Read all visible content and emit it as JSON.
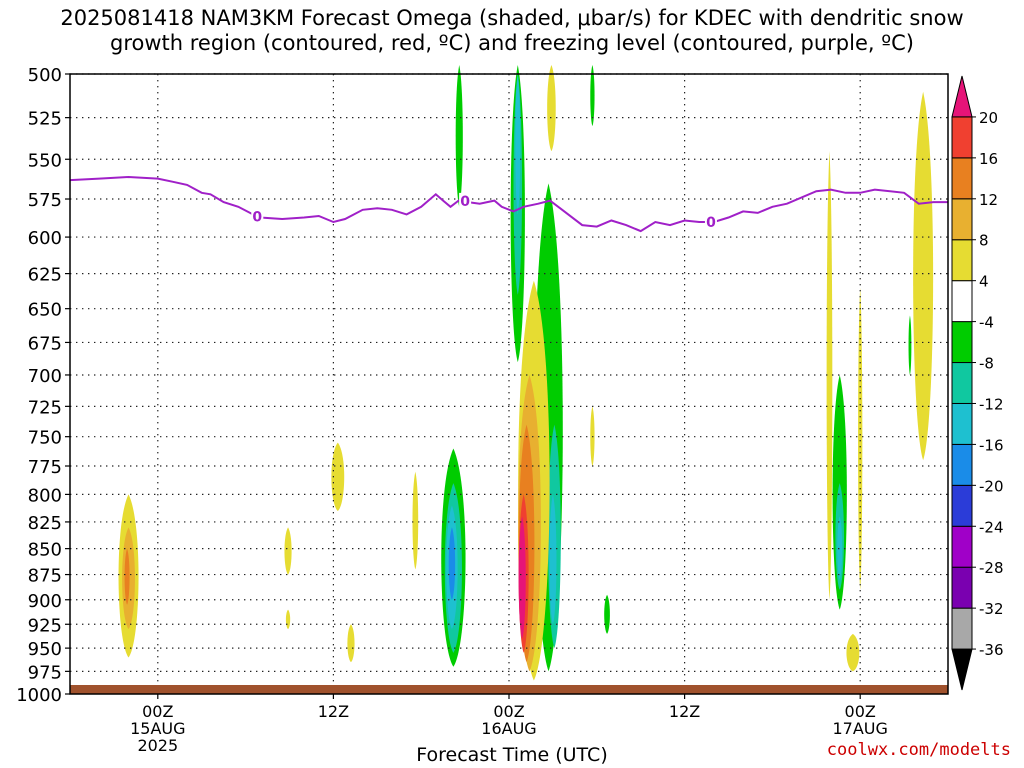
{
  "title": {
    "line1": "2025081418 NAM3KM Forecast Omega (shaded, μbar/s) for KDEC with dendritic snow",
    "line2": "growth region (contoured, red, ºC) and freezing level (contoured, purple, ºC)"
  },
  "watermark": "coolwx.com/modelts",
  "chart_data": {
    "type": "contour",
    "title": "2025081418 NAM3KM Forecast Omega (shaded, μbar/s) for KDEC with dendritic snow growth region (contoured, red, ºC) and freezing level (contoured, purple, ºC)",
    "xlabel": "Forecast Time (UTC)",
    "ylabel": "",
    "x_start_hour_utc": 18,
    "x_start_date": "14AUG2025",
    "x_range_hours": [
      0,
      59
    ],
    "y_levels_hpa": [
      500,
      525,
      550,
      575,
      600,
      625,
      650,
      675,
      700,
      725,
      750,
      775,
      800,
      825,
      850,
      875,
      900,
      925,
      950,
      975,
      1000
    ],
    "x_ticks": [
      {
        "hour": 6,
        "label": "00Z",
        "sub1": "15AUG",
        "sub2": "2025"
      },
      {
        "hour": 18,
        "label": "12Z",
        "sub1": "",
        "sub2": ""
      },
      {
        "hour": 30,
        "label": "00Z",
        "sub1": "16AUG",
        "sub2": ""
      },
      {
        "hour": 42,
        "label": "12Z",
        "sub1": "",
        "sub2": ""
      },
      {
        "hour": 54,
        "label": "00Z",
        "sub1": "17AUG",
        "sub2": ""
      }
    ],
    "colorbar": {
      "levels": [
        -36,
        -32,
        -28,
        -24,
        -20,
        -16,
        -12,
        -8,
        -4,
        4,
        8,
        12,
        16,
        20
      ],
      "colors": [
        "#000000",
        "#a8a8a8",
        "#7a00b0",
        "#a000c8",
        "#2b3cd8",
        "#1a8ce8",
        "#1ec0d0",
        "#10c8a0",
        "#00cc00",
        "#ffffff",
        "#e6dc32",
        "#e8b030",
        "#e88020",
        "#f04030",
        "#e61478"
      ]
    },
    "freezing_level": {
      "label": "0",
      "label_hours": [
        12.8,
        27.0,
        43.8
      ],
      "points": [
        [
          0,
          563
        ],
        [
          2,
          562
        ],
        [
          4,
          561
        ],
        [
          6,
          562
        ],
        [
          7,
          564
        ],
        [
          8,
          566
        ],
        [
          9,
          571
        ],
        [
          9.6,
          572
        ],
        [
          10.5,
          577
        ],
        [
          11.5,
          580
        ],
        [
          12.5,
          585
        ],
        [
          13,
          587
        ],
        [
          14.5,
          588
        ],
        [
          16,
          587
        ],
        [
          17,
          586
        ],
        [
          18,
          590
        ],
        [
          18.8,
          588
        ],
        [
          20,
          582
        ],
        [
          21,
          581
        ],
        [
          22,
          582
        ],
        [
          23,
          585
        ],
        [
          24,
          580
        ],
        [
          25,
          572
        ],
        [
          25.5,
          576
        ],
        [
          26,
          580
        ],
        [
          26.7,
          575
        ],
        [
          27.2,
          577
        ],
        [
          28,
          578
        ],
        [
          29,
          576
        ],
        [
          29.5,
          580
        ],
        [
          30.3,
          583
        ],
        [
          31,
          580
        ],
        [
          32,
          578
        ],
        [
          32.8,
          576
        ],
        [
          33.5,
          581
        ],
        [
          35,
          592
        ],
        [
          36,
          593
        ],
        [
          37,
          589
        ],
        [
          38,
          592
        ],
        [
          39,
          596
        ],
        [
          40,
          590
        ],
        [
          41,
          592
        ],
        [
          42,
          589
        ],
        [
          43,
          590
        ],
        [
          44,
          590
        ],
        [
          45,
          587
        ],
        [
          46,
          583
        ],
        [
          47,
          584
        ],
        [
          48,
          580
        ],
        [
          49,
          578
        ],
        [
          51,
          570
        ],
        [
          52,
          569
        ],
        [
          53,
          571
        ],
        [
          54,
          571
        ],
        [
          55,
          569
        ],
        [
          57,
          571
        ],
        [
          58,
          578
        ],
        [
          59,
          577
        ],
        [
          60,
          577
        ]
      ]
    },
    "omega_regions": [
      {
        "level": 4,
        "hour": 4.0,
        "top_hpa": 800,
        "bottom_hpa": 960,
        "width_h": 1.4
      },
      {
        "level": 8,
        "hour": 4.0,
        "top_hpa": 830,
        "bottom_hpa": 930,
        "width_h": 0.9
      },
      {
        "level": 12,
        "hour": 3.9,
        "top_hpa": 850,
        "bottom_hpa": 905,
        "width_h": 0.35
      },
      {
        "level": 4,
        "hour": 18.3,
        "top_hpa": 755,
        "bottom_hpa": 815,
        "width_h": 0.9
      },
      {
        "level": 4,
        "hour": 14.9,
        "top_hpa": 830,
        "bottom_hpa": 875,
        "width_h": 0.5
      },
      {
        "level": 4,
        "hour": 14.9,
        "top_hpa": 910,
        "bottom_hpa": 930,
        "width_h": 0.3
      },
      {
        "level": 4,
        "hour": 19.2,
        "top_hpa": 925,
        "bottom_hpa": 965,
        "width_h": 0.5
      },
      {
        "level": 4,
        "hour": 23.6,
        "top_hpa": 780,
        "bottom_hpa": 870,
        "width_h": 0.4
      },
      {
        "level": -4,
        "hour": 26.6,
        "top_hpa": 495,
        "bottom_hpa": 580,
        "width_h": 0.5
      },
      {
        "level": -4,
        "hour": 26.2,
        "top_hpa": 760,
        "bottom_hpa": 970,
        "width_h": 1.7
      },
      {
        "level": -8,
        "hour": 26.2,
        "top_hpa": 790,
        "bottom_hpa": 955,
        "width_h": 1.2
      },
      {
        "level": -12,
        "hour": 26.1,
        "top_hpa": 810,
        "bottom_hpa": 930,
        "width_h": 0.8
      },
      {
        "level": -16,
        "hour": 26.1,
        "top_hpa": 830,
        "bottom_hpa": 900,
        "width_h": 0.45
      },
      {
        "level": -4,
        "hour": 30.6,
        "top_hpa": 495,
        "bottom_hpa": 690,
        "width_h": 1.0
      },
      {
        "level": -8,
        "hour": 30.6,
        "top_hpa": 500,
        "bottom_hpa": 640,
        "width_h": 0.6
      },
      {
        "level": -12,
        "hour": 30.6,
        "top_hpa": 500,
        "bottom_hpa": 585,
        "width_h": 0.35
      },
      {
        "level": -4,
        "hour": 32.7,
        "top_hpa": 565,
        "bottom_hpa": 975,
        "width_h": 2.0
      },
      {
        "level": -8,
        "hour": 33.1,
        "top_hpa": 740,
        "bottom_hpa": 950,
        "width_h": 0.9
      },
      {
        "level": -12,
        "hour": 33.0,
        "top_hpa": 800,
        "bottom_hpa": 925,
        "width_h": 0.5
      },
      {
        "level": 4,
        "hour": 31.7,
        "top_hpa": 630,
        "bottom_hpa": 985,
        "width_h": 2.2
      },
      {
        "level": 8,
        "hour": 31.4,
        "top_hpa": 700,
        "bottom_hpa": 975,
        "width_h": 1.6
      },
      {
        "level": 12,
        "hour": 31.2,
        "top_hpa": 740,
        "bottom_hpa": 965,
        "width_h": 1.1
      },
      {
        "level": 16,
        "hour": 31.0,
        "top_hpa": 800,
        "bottom_hpa": 955,
        "width_h": 0.7
      },
      {
        "level": 20,
        "hour": 30.9,
        "top_hpa": 820,
        "bottom_hpa": 940,
        "width_h": 0.5
      },
      {
        "level": 4,
        "hour": 32.9,
        "top_hpa": 495,
        "bottom_hpa": 545,
        "width_h": 0.6
      },
      {
        "level": -4,
        "hour": 35.7,
        "top_hpa": 495,
        "bottom_hpa": 530,
        "width_h": 0.3
      },
      {
        "level": -4,
        "hour": 36.7,
        "top_hpa": 895,
        "bottom_hpa": 935,
        "width_h": 0.4
      },
      {
        "level": 4,
        "hour": 35.7,
        "top_hpa": 725,
        "bottom_hpa": 775,
        "width_h": 0.3
      },
      {
        "level": 4,
        "hour": 51.9,
        "top_hpa": 545,
        "bottom_hpa": 900,
        "width_h": 0.4
      },
      {
        "level": -4,
        "hour": 52.6,
        "top_hpa": 700,
        "bottom_hpa": 910,
        "width_h": 1.0
      },
      {
        "level": -8,
        "hour": 52.6,
        "top_hpa": 790,
        "bottom_hpa": 890,
        "width_h": 0.6
      },
      {
        "level": -12,
        "hour": 52.6,
        "top_hpa": 820,
        "bottom_hpa": 880,
        "width_h": 0.35
      },
      {
        "level": 4,
        "hour": 53.5,
        "top_hpa": 935,
        "bottom_hpa": 975,
        "width_h": 0.9
      },
      {
        "level": 4,
        "hour": 54.0,
        "top_hpa": 635,
        "bottom_hpa": 890,
        "width_h": 0.3
      },
      {
        "level": 4,
        "hour": 58.3,
        "top_hpa": 510,
        "bottom_hpa": 770,
        "width_h": 1.4
      },
      {
        "level": -4,
        "hour": 57.4,
        "top_hpa": 655,
        "bottom_hpa": 700,
        "width_h": 0.2
      }
    ],
    "surface_pressure_hpa": 990
  }
}
